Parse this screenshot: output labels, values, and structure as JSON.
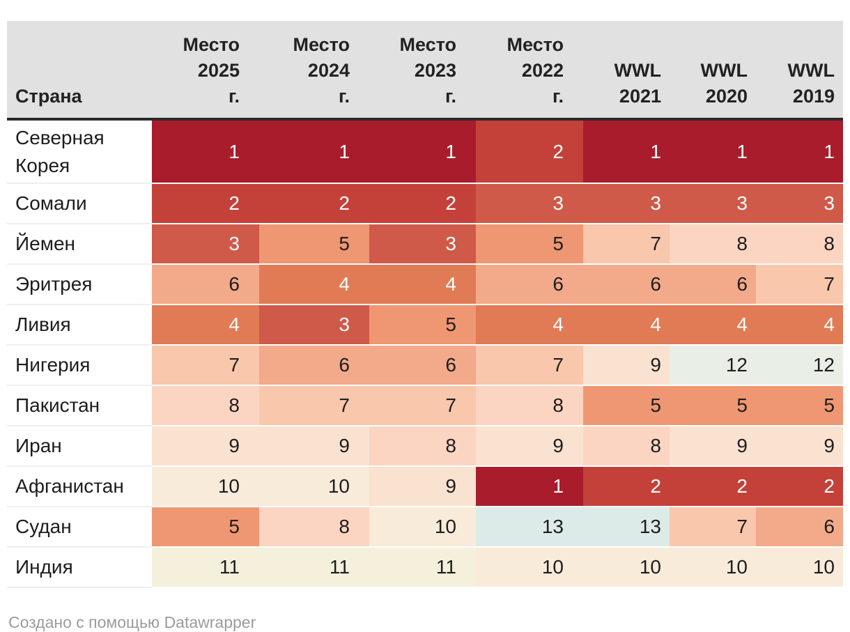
{
  "chart_data": {
    "type": "heatmap",
    "columns": [
      "Страна",
      "Место 2025 г.",
      "Место 2024 г.",
      "Место 2023 г.",
      "Место 2022 г.",
      "WWL 2021",
      "WWL 2020",
      "WWL 2019"
    ],
    "columns_lines": [
      [
        "Страна"
      ],
      [
        "Место",
        "2025",
        "г."
      ],
      [
        "Место",
        "2024",
        "г."
      ],
      [
        "Место",
        "2023",
        "г."
      ],
      [
        "Место",
        "2022",
        "г."
      ],
      [
        "WWL",
        "2021"
      ],
      [
        "WWL",
        "2020"
      ],
      [
        "WWL",
        "2019"
      ]
    ],
    "rows": [
      {
        "country": "Северная Корея",
        "values": [
          1,
          1,
          1,
          2,
          1,
          1,
          1
        ]
      },
      {
        "country": "Сомали",
        "values": [
          2,
          2,
          2,
          3,
          3,
          3,
          3
        ]
      },
      {
        "country": "Йемен",
        "values": [
          3,
          5,
          3,
          5,
          7,
          8,
          8
        ]
      },
      {
        "country": "Эритрея",
        "values": [
          6,
          4,
          4,
          6,
          6,
          6,
          7
        ]
      },
      {
        "country": "Ливия",
        "values": [
          4,
          3,
          5,
          4,
          4,
          4,
          4
        ]
      },
      {
        "country": "Нигерия",
        "values": [
          7,
          6,
          6,
          7,
          9,
          12,
          12
        ]
      },
      {
        "country": "Пакистан",
        "values": [
          8,
          7,
          7,
          8,
          5,
          5,
          5
        ]
      },
      {
        "country": "Иран",
        "values": [
          9,
          9,
          8,
          9,
          8,
          9,
          9
        ]
      },
      {
        "country": "Афганистан",
        "values": [
          10,
          10,
          9,
          1,
          2,
          2,
          2
        ]
      },
      {
        "country": "Судан",
        "values": [
          5,
          8,
          10,
          13,
          13,
          7,
          6
        ]
      },
      {
        "country": "Индия",
        "values": [
          11,
          11,
          11,
          10,
          10,
          10,
          10
        ]
      }
    ],
    "value_range": [
      1,
      13
    ],
    "legend": "none",
    "grid": "off"
  },
  "colors": {
    "header_bg": "#e1e1e1",
    "header_border": "#2b2b2b",
    "scale": {
      "1": {
        "bg": "#a91c2c",
        "text": "#ffffff"
      },
      "2": {
        "bg": "#c4413a",
        "text": "#ffffff"
      },
      "3": {
        "bg": "#cf5a49",
        "text": "#ffffff"
      },
      "4": {
        "bg": "#e17b55",
        "text": "#ffffff"
      },
      "5": {
        "bg": "#ef9772",
        "text": "#1d1d1d"
      },
      "6": {
        "bg": "#f3aa8a",
        "text": "#1d1d1d"
      },
      "7": {
        "bg": "#f9c7ab",
        "text": "#1d1d1d"
      },
      "8": {
        "bg": "#fbd5c1",
        "text": "#1d1d1d"
      },
      "9": {
        "bg": "#fae2d1",
        "text": "#1d1d1d"
      },
      "10": {
        "bg": "#f8ebda",
        "text": "#1d1d1d"
      },
      "11": {
        "bg": "#f4f0dc",
        "text": "#1d1d1d"
      },
      "12": {
        "bg": "#e9efe7",
        "text": "#1d1d1d"
      },
      "13": {
        "bg": "#dcebe7",
        "text": "#1d1d1d"
      }
    }
  },
  "footer": {
    "credit": "Создано с помощью Datawrapper"
  }
}
